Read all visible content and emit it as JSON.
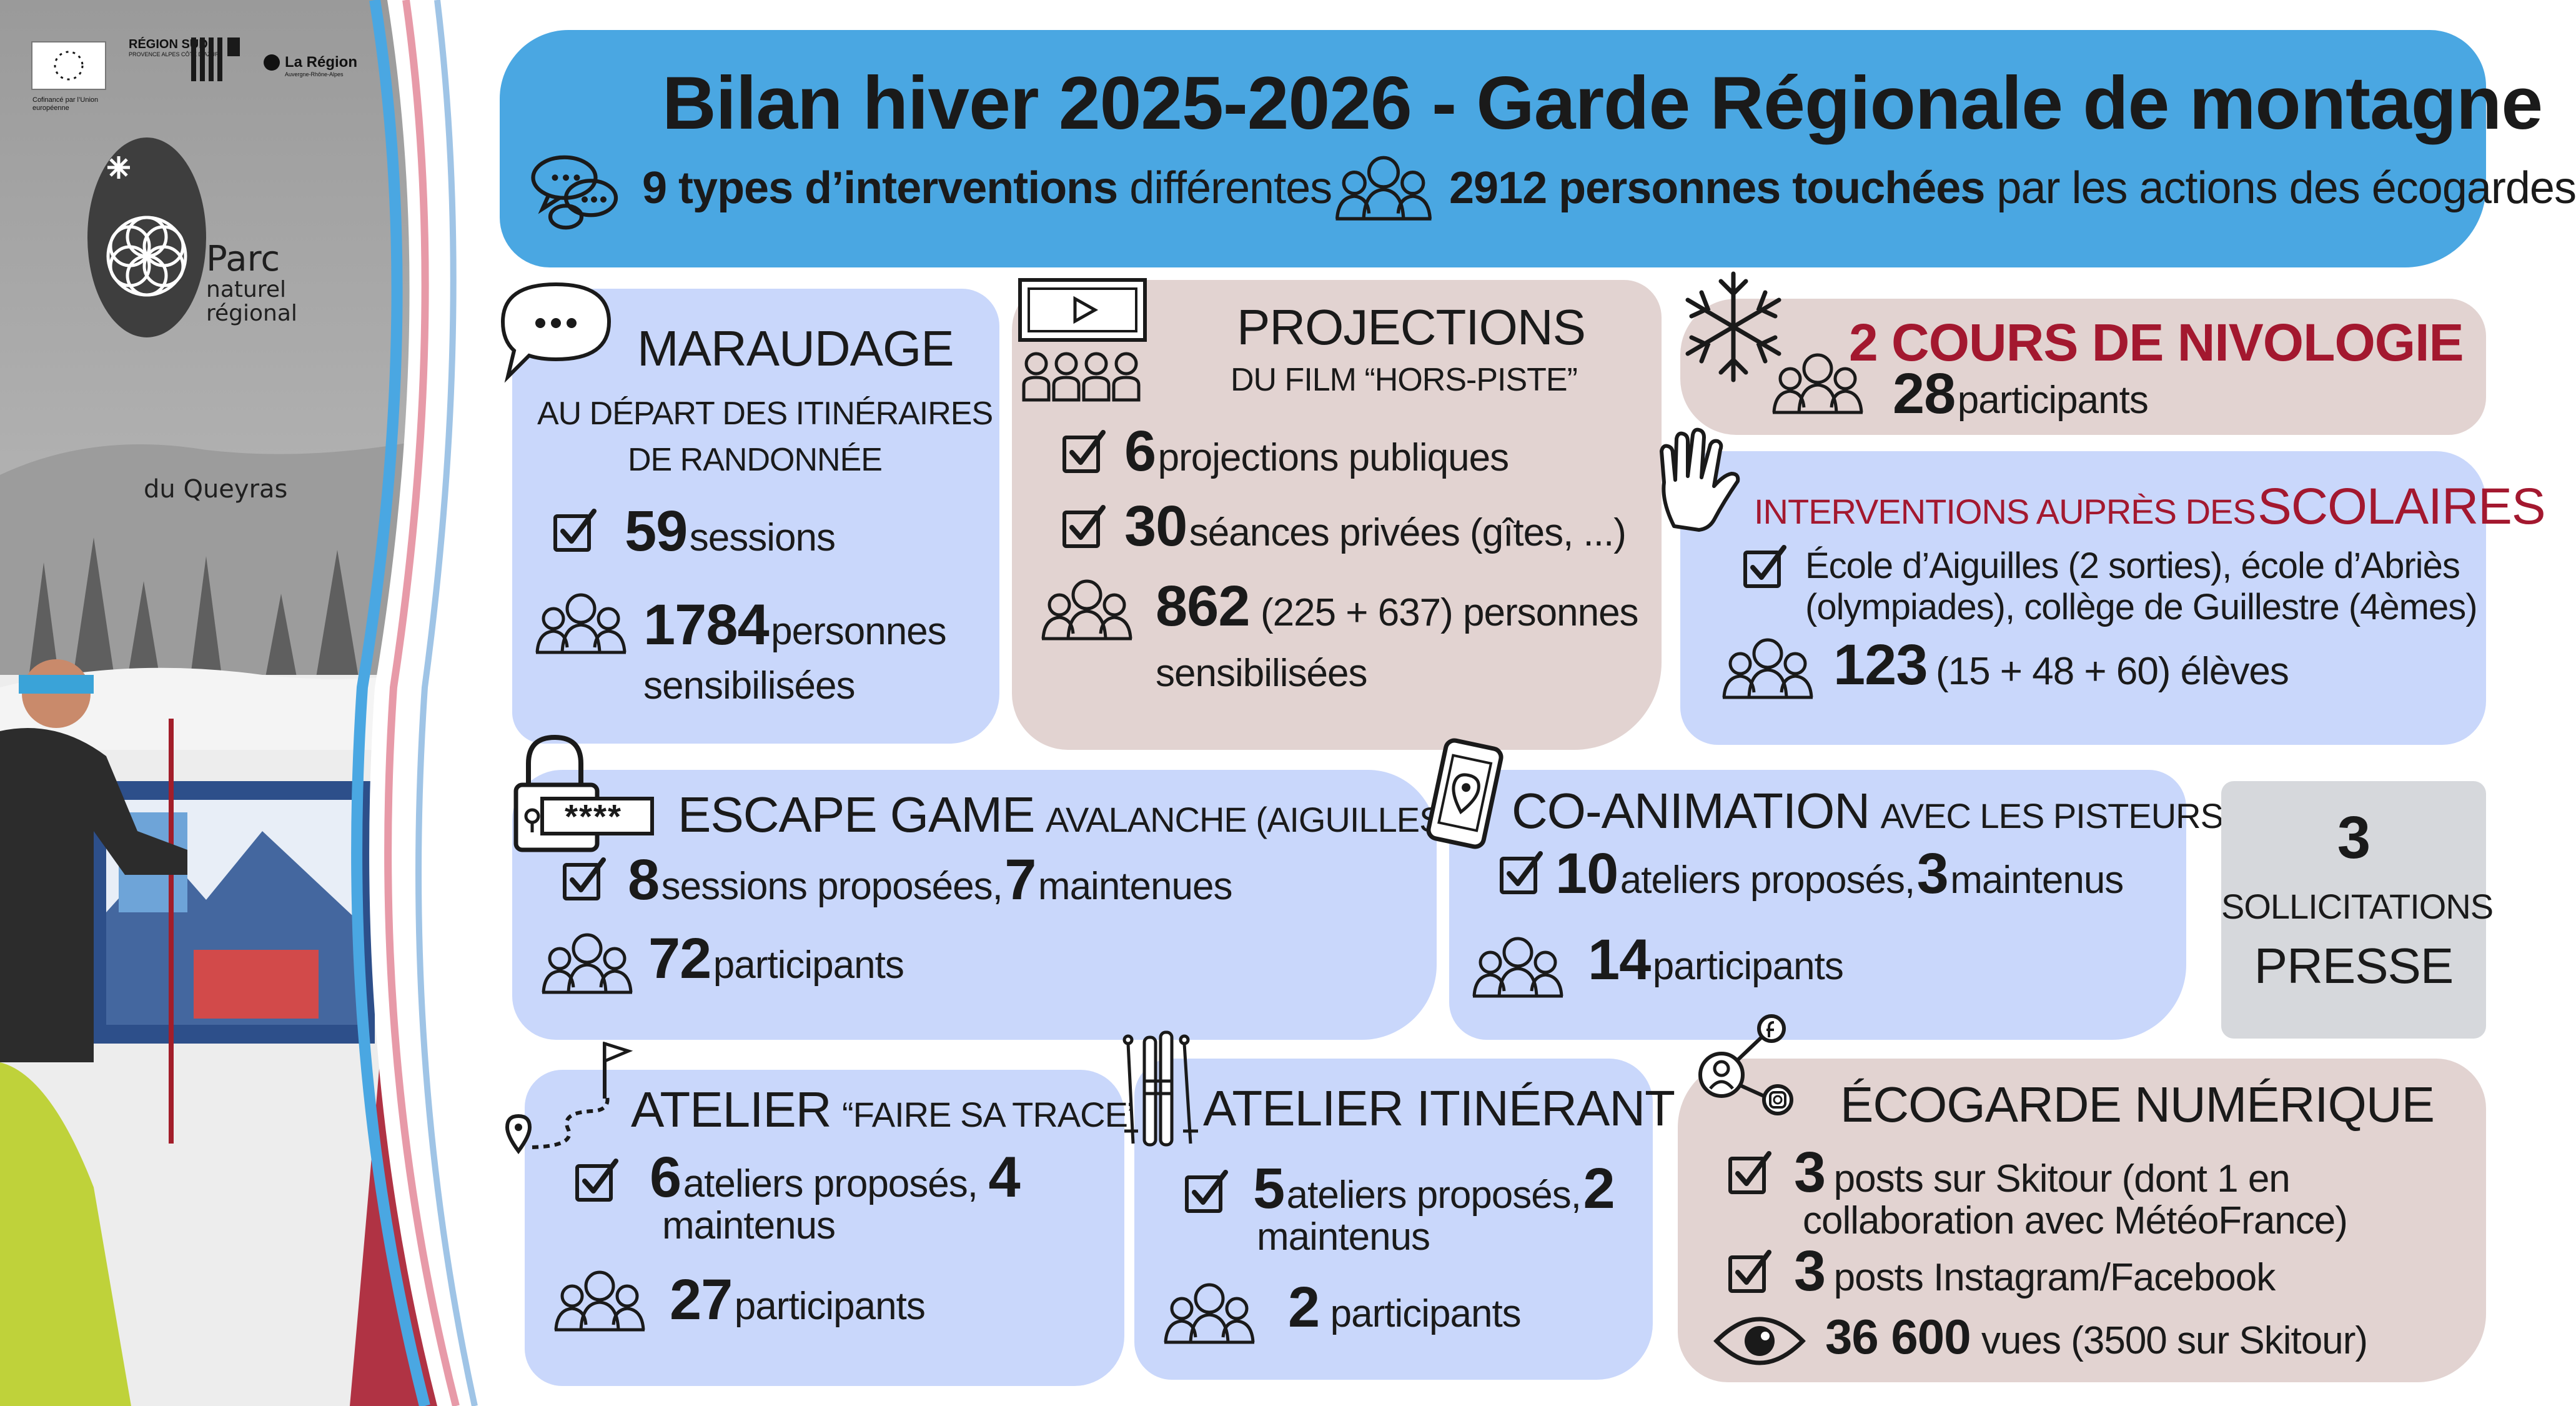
{
  "header": {
    "title": "Bilan hiver 2025-2026 - Garde Régionale de montagne",
    "types_bold": "9 types d’interventions",
    "types_rest": "différentes",
    "people_bold": "2912 personnes touchées",
    "people_rest": "par les actions des écogardes"
  },
  "logos": {
    "eu_caption": "Cofinancé par l’Union européenne",
    "region_sud": "RÉGION SUD",
    "region_sud_sub": "PROVENCE ALPES CÔTE D’AZUR",
    "region_aura": "La Région",
    "region_aura_sub": "Auvergne-Rhône-Alpes",
    "parc_l1": "Parc",
    "parc_l2": "naturel",
    "parc_l3": "régional",
    "parc_l4": "du Queyras"
  },
  "maraudage": {
    "title": "MARAUDAGE",
    "sub1": "AU DÉPART DES ITINÉRAIRES",
    "sub2": "DE RANDONNÉE",
    "sessions_num": "59",
    "sessions_txt": "sessions",
    "people_num": "1784",
    "people_txt1": "personnes",
    "people_txt2": "sensibilisées"
  },
  "projections": {
    "title": "PROJECTIONS",
    "sub": "DU FILM “HORS-PISTE”",
    "pub_num": "6",
    "pub_txt": "projections publiques",
    "priv_num": "30",
    "priv_txt": "séances privées (gîtes, ...)",
    "people_num": "862",
    "people_txt1": "(225 + 637) personnes",
    "people_txt2": "sensibilisées"
  },
  "nivologie": {
    "title": "2 COURS DE NIVOLOGIE",
    "num": "28",
    "txt": "participants"
  },
  "scolaires": {
    "title_small": "INTERVENTIONS AUPRÈS DES",
    "title_big": "SCOLAIRES",
    "line1": "École d’Aiguilles (2 sorties), école d’Abriès",
    "line2": "(olympiades), collège de Guillestre (4èmes)",
    "num": "123",
    "txt": "(15 + 48 + 60) élèves"
  },
  "escape": {
    "title": "ESCAPE GAME",
    "title_small": "AVALANCHE (AIGUILLES)",
    "code": "****",
    "sess_num": "8",
    "sess_txt": "sessions proposées,",
    "maint_num": "7",
    "maint_txt": "maintenues",
    "part_num": "72",
    "part_txt": "participants"
  },
  "coanimation": {
    "title": "CO-ANIMATION",
    "title_small": "AVEC LES PISTEURS",
    "at_num": "10",
    "at_txt": "ateliers proposés,",
    "maint_num": "3",
    "maint_txt": "maintenus",
    "part_num": "14",
    "part_txt": "participants"
  },
  "presse": {
    "num": "3",
    "l1": "SOLLICITATIONS",
    "l2": "PRESSE"
  },
  "trace": {
    "title": "ATELIER",
    "title_small": "“FAIRE SA TRACE”",
    "at_num": "6",
    "at_txt": "ateliers proposés,",
    "maint_num": "4",
    "maint_txt": "maintenus",
    "part_num": "27",
    "part_txt": "participants"
  },
  "itinerant": {
    "title": "ATELIER ITINÉRANT",
    "at_num": "5",
    "at_txt": "ateliers proposés,",
    "maint_num": "2",
    "maint_txt": "maintenus",
    "part_num": "2",
    "part_txt": "participants"
  },
  "numerique": {
    "title": "ÉCOGARDE NUMÉRIQUE",
    "skitour_num": "3",
    "skitour_txt1": "posts sur Skitour (dont 1 en",
    "skitour_txt2": "collaboration avec MétéoFrance)",
    "insta_num": "3",
    "insta_txt": "posts Instagram/Facebook",
    "views_num": "36 600",
    "views_txt": "vues (3500 sur Skitour)"
  },
  "colors": {
    "header_blue": "#4aa7e2",
    "card_blue": "#c9d7fb",
    "card_taupe": "#e2d3d1",
    "card_grey": "#d6d8dc",
    "accent_red": "#a3182f"
  }
}
